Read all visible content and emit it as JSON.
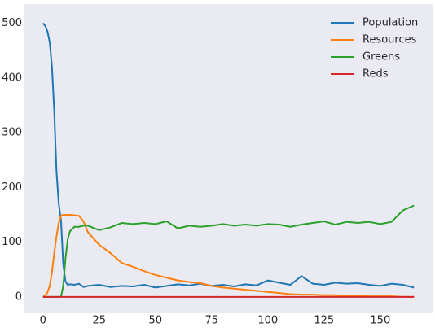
{
  "chart_data": {
    "type": "line",
    "x": [
      0,
      1,
      2,
      3,
      4,
      5,
      6,
      7,
      8,
      9,
      10,
      11,
      12,
      14,
      16,
      18,
      20,
      25,
      30,
      35,
      40,
      45,
      50,
      55,
      60,
      65,
      70,
      75,
      80,
      85,
      90,
      95,
      100,
      105,
      110,
      115,
      120,
      125,
      130,
      135,
      140,
      145,
      150,
      155,
      160,
      165
    ],
    "series": [
      {
        "name": "Population",
        "color": "#1f77b4",
        "values": [
          500,
          495,
          485,
          465,
          420,
          340,
          230,
          170,
          140,
          60,
          28,
          22,
          23,
          22,
          24,
          18,
          20,
          22,
          18,
          20,
          19,
          22,
          17,
          20,
          23,
          21,
          24,
          20,
          22,
          19,
          23,
          21,
          30,
          26,
          22,
          38,
          24,
          22,
          26,
          24,
          25,
          22,
          20,
          24,
          22,
          17
        ]
      },
      {
        "name": "Resources",
        "color": "#ff7f0e",
        "values": [
          0,
          2,
          8,
          20,
          45,
          80,
          110,
          135,
          148,
          150,
          150,
          150,
          150,
          149,
          148,
          138,
          118,
          95,
          80,
          62,
          55,
          47,
          40,
          35,
          30,
          27,
          25,
          20,
          17,
          15,
          13,
          11,
          9,
          7,
          5,
          4,
          4,
          3,
          3,
          2,
          2,
          1,
          1,
          1,
          0,
          0
        ]
      },
      {
        "name": "Greens",
        "color": "#2ca02c",
        "values": [
          0,
          0,
          0,
          0,
          0,
          0,
          0,
          0,
          0,
          20,
          70,
          105,
          120,
          128,
          128,
          130,
          130,
          122,
          127,
          135,
          133,
          135,
          133,
          138,
          125,
          130,
          128,
          130,
          133,
          130,
          132,
          130,
          133,
          132,
          128,
          132,
          135,
          138,
          132,
          137,
          135,
          137,
          133,
          137,
          158,
          167
        ]
      },
      {
        "name": "Reds",
        "color": "#d62728",
        "values": [
          0,
          0,
          0,
          0,
          0,
          0,
          0,
          0,
          0,
          0,
          0,
          0,
          0,
          0,
          0,
          0,
          0,
          0,
          0,
          0,
          0,
          0,
          0,
          0,
          0,
          0,
          0,
          0,
          0,
          0,
          0,
          0,
          0,
          0,
          0,
          0,
          0,
          0,
          0,
          0,
          0,
          0,
          0,
          0,
          0,
          0
        ]
      }
    ],
    "xlim": [
      -8.25,
      173.25
    ],
    "ylim": [
      -30,
      535
    ],
    "xticks": [
      0,
      25,
      50,
      75,
      100,
      125,
      150
    ],
    "yticks": [
      0,
      100,
      200,
      300,
      400,
      500
    ],
    "grid": false,
    "legend": "upper right",
    "background": "#eaeaf2"
  }
}
